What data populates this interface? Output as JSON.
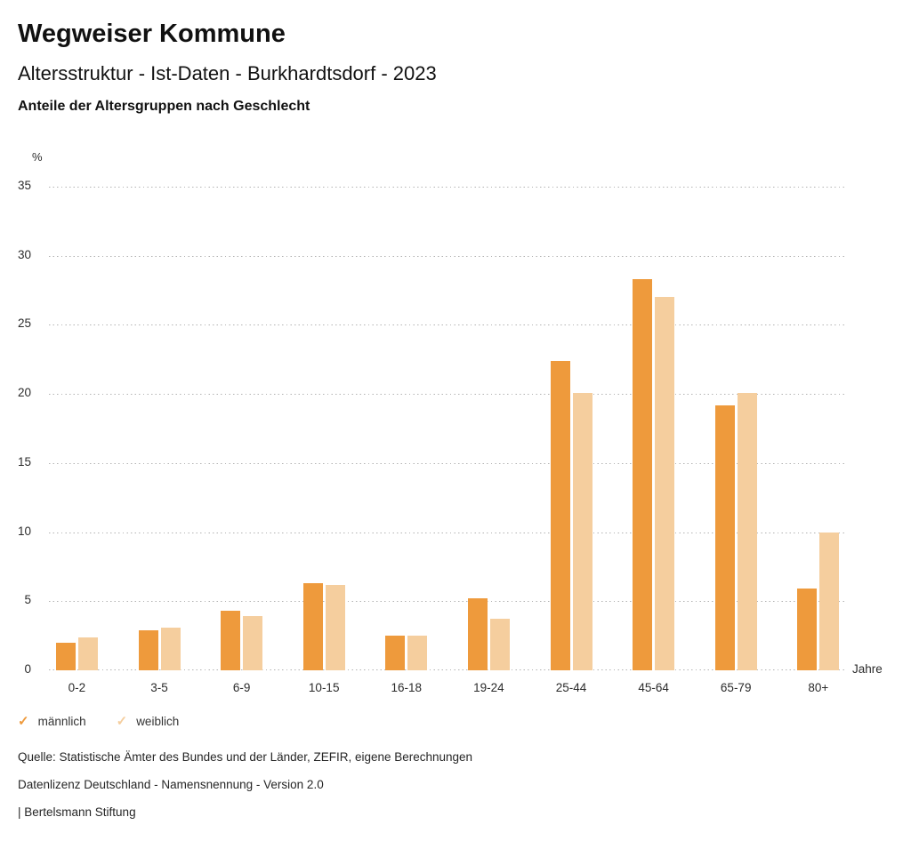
{
  "header": {
    "title": "Wegweiser Kommune",
    "subtitle": "Altersstruktur - Ist-Daten - Burkhardtsdorf - 2023",
    "heading": "Anteile der Altersgruppen nach Geschlecht"
  },
  "chart_data": {
    "type": "bar",
    "title": "Anteile der Altersgruppen nach Geschlecht",
    "unit_label": "%",
    "xlabel": "Jahre",
    "categories": [
      "0-2",
      "3-5",
      "6-9",
      "10-15",
      "16-18",
      "19-24",
      "25-44",
      "45-64",
      "65-79",
      "80+"
    ],
    "series": [
      {
        "name": "männlich",
        "color": "#EE9A3C",
        "values": [
          2.0,
          2.9,
          4.3,
          6.3,
          2.5,
          5.2,
          22.4,
          28.3,
          19.2,
          5.9
        ]
      },
      {
        "name": "weiblich",
        "color": "#F5CE9E",
        "values": [
          2.4,
          3.1,
          3.9,
          6.2,
          2.5,
          3.7,
          20.1,
          27.0,
          20.1,
          10.0
        ]
      }
    ],
    "ylim": [
      0,
      35
    ],
    "yticks": [
      0,
      5,
      10,
      15,
      20,
      25,
      30,
      35
    ],
    "grid": "dotted horizontal",
    "gridline_color": "#b3b3b3",
    "legend_position": "bottom-left"
  },
  "legend": {
    "check_glyph": "✓",
    "items": [
      {
        "label": "männlich",
        "check_color": "#EE9A3C"
      },
      {
        "label": "weiblich",
        "check_color": "#F5CE9E"
      }
    ]
  },
  "footer": {
    "source": "Quelle: Statistische Ämter des Bundes und der Länder, ZEFIR, eigene Berechnungen",
    "license": "Datenlizenz Deutschland - Namensnennung - Version 2.0",
    "attribution": "| Bertelsmann Stiftung"
  }
}
